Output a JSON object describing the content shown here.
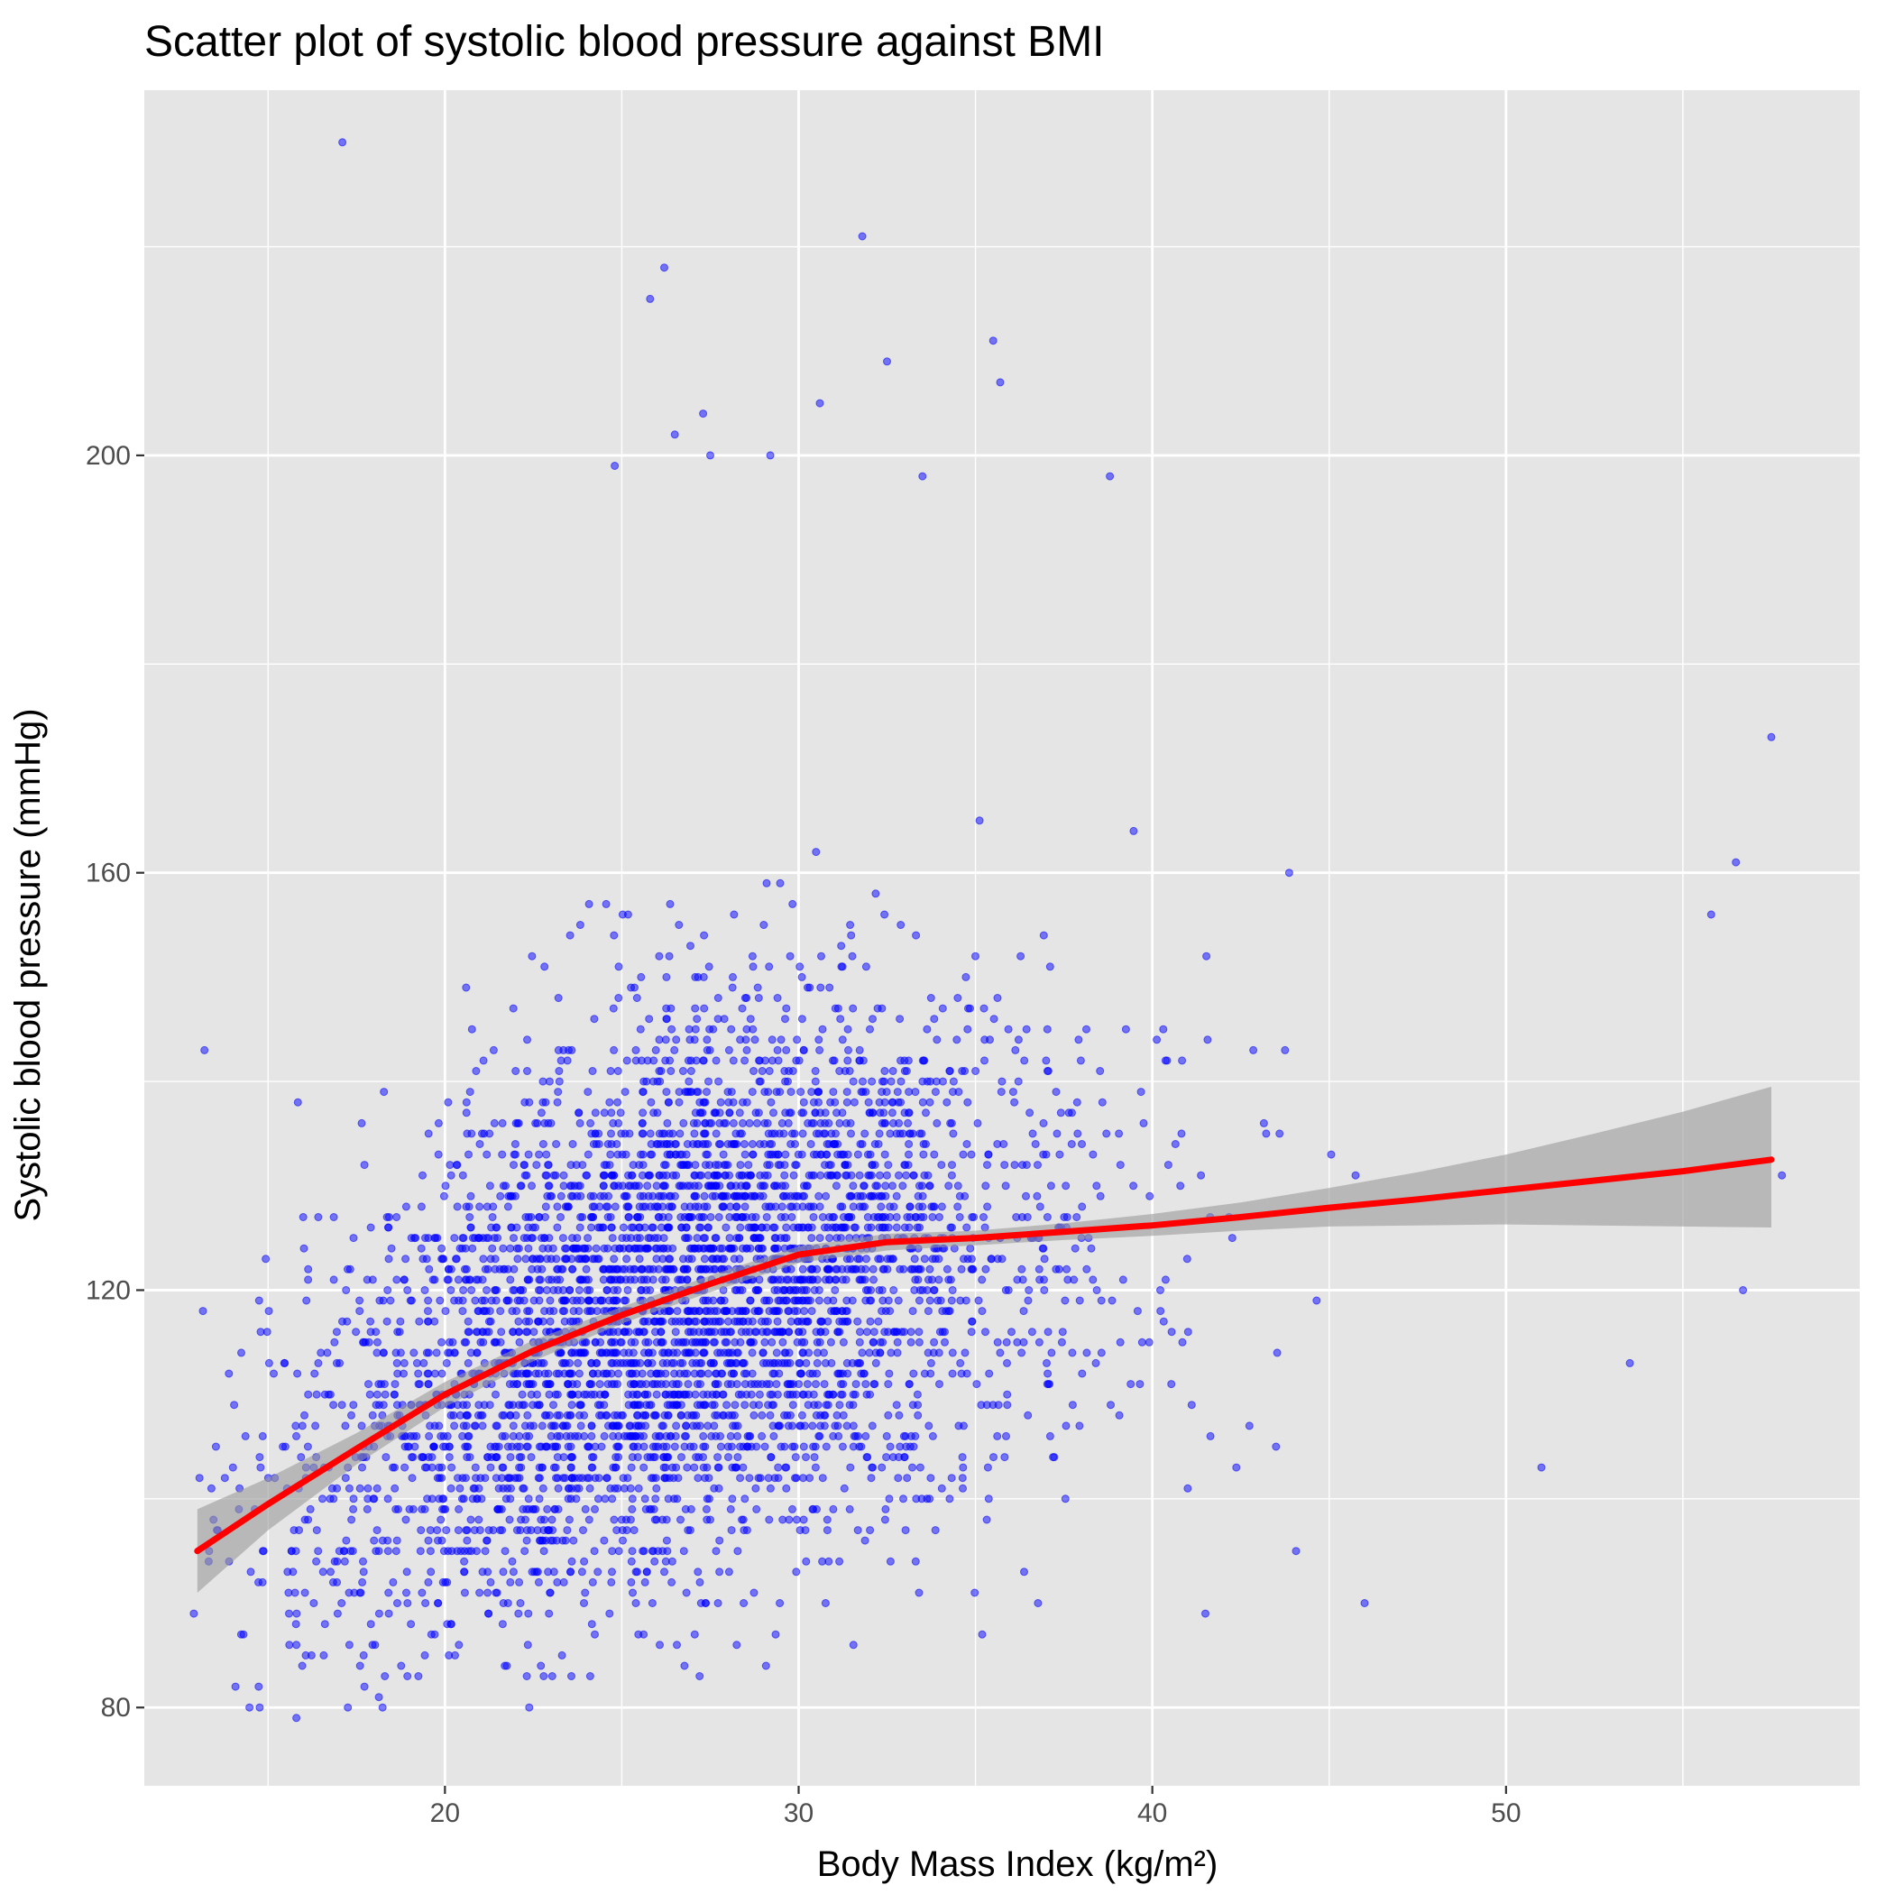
{
  "chart_data": {
    "type": "scatter",
    "title": "Scatter plot of systolic blood pressure against BMI",
    "xlabel": "Body Mass Index (kg/m²)",
    "ylabel": "Systolic blood pressure (mmHg)",
    "xlim": [
      11.5,
      60
    ],
    "ylim": [
      72.5,
      235
    ],
    "x_ticks": [
      20,
      30,
      40,
      50
    ],
    "y_ticks": [
      80,
      120,
      160,
      200
    ],
    "x_minor_ticks": [
      15,
      25,
      35,
      45,
      55
    ],
    "y_minor_ticks": [
      100,
      140,
      180,
      220
    ],
    "grid": true,
    "legend": "none",
    "colors": {
      "panel": "#e5e5e5",
      "grid": "#ffffff",
      "points": "#0000ff",
      "smooth_line": "#ff0000",
      "confidence_band": "#999999"
    },
    "point_cloud": {
      "count": 4200,
      "bmi_mean": 27,
      "bmi_sd": 6.2,
      "bmi_range": [
        13,
        58
      ],
      "sbp_sd": 13
    },
    "highlighted_points": [
      {
        "x": 17.1,
        "y": 230
      },
      {
        "x": 31.8,
        "y": 221
      },
      {
        "x": 26.2,
        "y": 218
      },
      {
        "x": 25.8,
        "y": 215
      },
      {
        "x": 35.5,
        "y": 211
      },
      {
        "x": 32.5,
        "y": 209
      },
      {
        "x": 35.7,
        "y": 207
      },
      {
        "x": 30.6,
        "y": 205
      },
      {
        "x": 27.3,
        "y": 204
      },
      {
        "x": 26.5,
        "y": 202
      },
      {
        "x": 24.8,
        "y": 199
      },
      {
        "x": 33.5,
        "y": 198
      },
      {
        "x": 38.8,
        "y": 198
      },
      {
        "x": 27.5,
        "y": 200
      },
      {
        "x": 29.2,
        "y": 200
      },
      {
        "x": 13.2,
        "y": 143
      },
      {
        "x": 57.5,
        "y": 173
      },
      {
        "x": 56.5,
        "y": 161
      },
      {
        "x": 55.8,
        "y": 156
      },
      {
        "x": 15.8,
        "y": 79
      },
      {
        "x": 27.2,
        "y": 83
      },
      {
        "x": 46,
        "y": 90
      },
      {
        "x": 41.5,
        "y": 89
      },
      {
        "x": 57.8,
        "y": 131
      },
      {
        "x": 56.7,
        "y": 120
      },
      {
        "x": 53.5,
        "y": 113
      },
      {
        "x": 51,
        "y": 103
      },
      {
        "x": 12.9,
        "y": 89
      },
      {
        "x": 18.3,
        "y": 83
      }
    ],
    "smooth_fit": {
      "x": [
        13,
        15,
        17.5,
        20,
        22.5,
        25,
        27.5,
        30,
        32.5,
        35,
        37.5,
        40,
        42.5,
        45,
        47.5,
        50,
        52.5,
        55,
        57.5
      ],
      "y": [
        95,
        99.5,
        104.8,
        110,
        114.2,
        117.6,
        120.6,
        123.4,
        124.6,
        125,
        125.6,
        126.2,
        127,
        127.9,
        128.7,
        129.6,
        130.5,
        131.4,
        132.5
      ],
      "lower": [
        91,
        97,
        103.3,
        108.8,
        113.2,
        116.8,
        119.8,
        122.6,
        123.8,
        124.3,
        124.8,
        125.2,
        125.7,
        126.1,
        126.2,
        126.3,
        126.2,
        126.1,
        126
      ],
      "upper": [
        99,
        102,
        106.3,
        111.2,
        115.2,
        118.4,
        121.4,
        124.2,
        125.4,
        125.7,
        126.4,
        127.3,
        128.4,
        129.8,
        131.3,
        133,
        135,
        137.1,
        139.5
      ]
    }
  }
}
